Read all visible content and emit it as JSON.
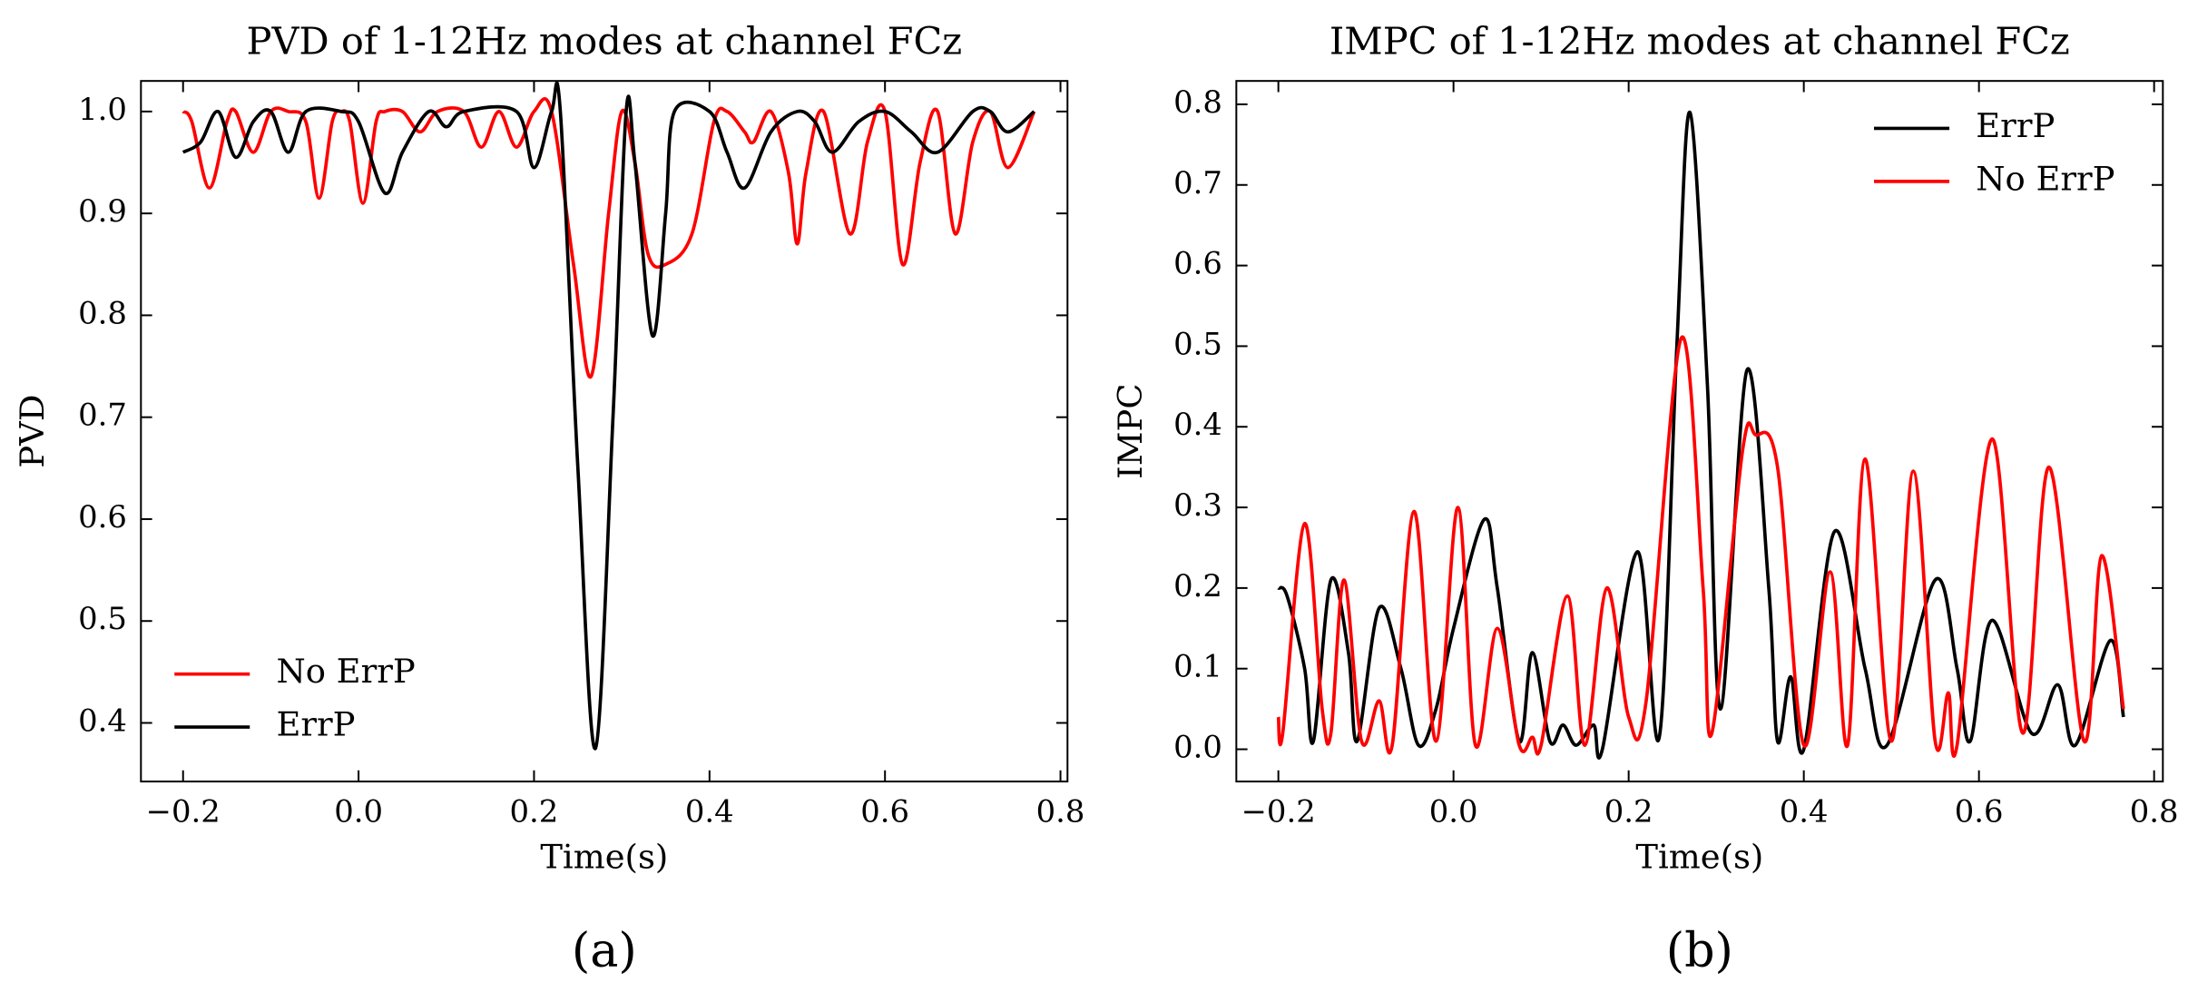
{
  "chart_data": [
    {
      "type": "line",
      "title": "PVD of 1-12Hz modes at channel FCz",
      "xlabel": "Time(s)",
      "ylabel": "PVD",
      "caption": "(a)",
      "xlim": [
        -0.248,
        0.808
      ],
      "ylim": [
        0.3425,
        1.03
      ],
      "xticks": [
        {
          "value": -0.2,
          "label": "−0.2"
        },
        {
          "value": 0.0,
          "label": "0.0"
        },
        {
          "value": 0.2,
          "label": "0.2"
        },
        {
          "value": 0.4,
          "label": "0.4"
        },
        {
          "value": 0.6,
          "label": "0.6"
        },
        {
          "value": 0.8,
          "label": "0.8"
        }
      ],
      "yticks": [
        {
          "value": 0.4,
          "label": "0.4"
        },
        {
          "value": 0.5,
          "label": "0.5"
        },
        {
          "value": 0.6,
          "label": "0.6"
        },
        {
          "value": 0.7,
          "label": "0.7"
        },
        {
          "value": 0.8,
          "label": "0.8"
        },
        {
          "value": 0.9,
          "label": "0.9"
        },
        {
          "value": 1.0,
          "label": "1.0"
        }
      ],
      "legend": "lower left",
      "series": [
        {
          "name": "No ErrP",
          "color": "#ff0000",
          "x": [
            -0.2,
            -0.19,
            -0.17,
            -0.15,
            -0.14,
            -0.12,
            -0.1,
            -0.08,
            -0.06,
            -0.045,
            -0.03,
            -0.02,
            -0.01,
            0.005,
            0.02,
            0.03,
            0.05,
            0.07,
            0.09,
            0.12,
            0.14,
            0.16,
            0.18,
            0.2,
            0.22,
            0.245,
            0.265,
            0.285,
            0.3,
            0.315,
            0.33,
            0.35,
            0.38,
            0.405,
            0.42,
            0.44,
            0.45,
            0.47,
            0.49,
            0.5,
            0.51,
            0.53,
            0.56,
            0.58,
            0.6,
            0.62,
            0.64,
            0.66,
            0.68,
            0.7,
            0.72,
            0.74,
            0.77
          ],
          "values": [
            1.0,
            0.99,
            0.925,
            0.99,
            1.0,
            0.96,
            1.0,
            1.0,
            0.99,
            0.915,
            0.99,
            1.0,
            0.99,
            0.91,
            0.99,
            1.0,
            1.0,
            0.98,
            1.0,
            1.0,
            0.965,
            1.0,
            0.965,
            1.0,
            1.0,
            0.85,
            0.74,
            0.9,
            1.0,
            0.95,
            0.86,
            0.85,
            0.88,
            0.99,
            1.0,
            0.98,
            0.97,
            1.0,
            0.94,
            0.87,
            0.94,
            1.0,
            0.88,
            0.97,
            1.0,
            0.85,
            0.95,
            1.0,
            0.88,
            0.97,
            1.0,
            0.945,
            1.0
          ]
        },
        {
          "name": "ErrP",
          "color": "#000000",
          "x": [
            -0.2,
            -0.18,
            -0.16,
            -0.14,
            -0.12,
            -0.1,
            -0.08,
            -0.06,
            -0.02,
            0.0,
            0.03,
            0.05,
            0.08,
            0.1,
            0.12,
            0.18,
            0.2,
            0.22,
            0.23,
            0.25,
            0.27,
            0.29,
            0.305,
            0.315,
            0.335,
            0.35,
            0.36,
            0.4,
            0.42,
            0.44,
            0.47,
            0.5,
            0.52,
            0.54,
            0.57,
            0.6,
            0.63,
            0.66,
            0.7,
            0.72,
            0.74,
            0.77
          ],
          "values": [
            0.96,
            0.97,
            1.0,
            0.955,
            0.99,
            1.0,
            0.96,
            1.0,
            1.0,
            0.99,
            0.92,
            0.96,
            1.0,
            0.985,
            1.0,
            1.0,
            0.945,
            1.0,
            1.0,
            0.65,
            0.375,
            0.7,
            1.0,
            0.95,
            0.78,
            0.9,
            1.0,
            1.0,
            0.96,
            0.925,
            0.98,
            1.0,
            0.99,
            0.96,
            0.99,
            1.0,
            0.98,
            0.96,
            1.0,
            1.0,
            0.98,
            1.0
          ]
        }
      ]
    },
    {
      "type": "line",
      "title": "IMPC of 1-12Hz modes  at channel FCz",
      "xlabel": "Time(s)",
      "ylabel": "IMPC",
      "caption": "(b)",
      "xlim": [
        -0.248,
        0.81
      ],
      "ylim": [
        -0.04,
        0.829
      ],
      "xticks": [
        {
          "value": -0.2,
          "label": "−0.2"
        },
        {
          "value": 0.0,
          "label": "0.0"
        },
        {
          "value": 0.2,
          "label": "0.2"
        },
        {
          "value": 0.4,
          "label": "0.4"
        },
        {
          "value": 0.6,
          "label": "0.6"
        },
        {
          "value": 0.8,
          "label": "0.8"
        }
      ],
      "yticks": [
        {
          "value": 0.0,
          "label": "0.0"
        },
        {
          "value": 0.1,
          "label": "0.1"
        },
        {
          "value": 0.2,
          "label": "0.2"
        },
        {
          "value": 0.3,
          "label": "0.3"
        },
        {
          "value": 0.4,
          "label": "0.4"
        },
        {
          "value": 0.5,
          "label": "0.5"
        },
        {
          "value": 0.6,
          "label": "0.6"
        },
        {
          "value": 0.7,
          "label": "0.7"
        },
        {
          "value": 0.8,
          "label": "0.8"
        }
      ],
      "legend": "upper right",
      "series": [
        {
          "name": "ErrP",
          "color": "#000000",
          "x": [
            -0.2,
            -0.19,
            -0.17,
            -0.16,
            -0.14,
            -0.12,
            -0.11,
            -0.085,
            -0.06,
            -0.04,
            -0.02,
            0.0,
            0.035,
            0.05,
            0.075,
            0.09,
            0.11,
            0.125,
            0.14,
            0.16,
            0.17,
            0.21,
            0.235,
            0.255,
            0.27,
            0.29,
            0.305,
            0.335,
            0.36,
            0.37,
            0.385,
            0.4,
            0.435,
            0.47,
            0.495,
            0.55,
            0.575,
            0.59,
            0.615,
            0.66,
            0.69,
            0.71,
            0.75,
            0.765
          ],
          "values": [
            0.2,
            0.19,
            0.1,
            0.01,
            0.21,
            0.12,
            0.01,
            0.175,
            0.1,
            0.005,
            0.05,
            0.15,
            0.285,
            0.2,
            0.01,
            0.12,
            0.01,
            0.03,
            0.005,
            0.03,
            0.0,
            0.245,
            0.015,
            0.5,
            0.79,
            0.45,
            0.05,
            0.47,
            0.2,
            0.01,
            0.09,
            0.0,
            0.27,
            0.1,
            0.005,
            0.21,
            0.1,
            0.01,
            0.16,
            0.02,
            0.08,
            0.005,
            0.135,
            0.04
          ]
        },
        {
          "name": "No ErrP",
          "color": "#ff0000",
          "x": [
            -0.2,
            -0.195,
            -0.17,
            -0.15,
            -0.14,
            -0.125,
            -0.105,
            -0.085,
            -0.07,
            -0.045,
            -0.02,
            0.005,
            0.025,
            0.05,
            0.075,
            0.09,
            0.1,
            0.13,
            0.15,
            0.175,
            0.2,
            0.22,
            0.26,
            0.285,
            0.295,
            0.33,
            0.345,
            0.37,
            0.4,
            0.43,
            0.45,
            0.47,
            0.5,
            0.525,
            0.55,
            0.565,
            0.575,
            0.615,
            0.65,
            0.68,
            0.72,
            0.74,
            0.765
          ],
          "values": [
            0.04,
            0.02,
            0.28,
            0.05,
            0.02,
            0.21,
            0.01,
            0.06,
            0.005,
            0.295,
            0.01,
            0.3,
            0.005,
            0.15,
            0.005,
            0.015,
            0.005,
            0.19,
            0.005,
            0.2,
            0.04,
            0.06,
            0.51,
            0.2,
            0.02,
            0.37,
            0.39,
            0.35,
            0.005,
            0.22,
            0.005,
            0.36,
            0.01,
            0.345,
            0.01,
            0.07,
            0.005,
            0.385,
            0.02,
            0.35,
            0.01,
            0.24,
            0.05
          ]
        }
      ]
    }
  ]
}
